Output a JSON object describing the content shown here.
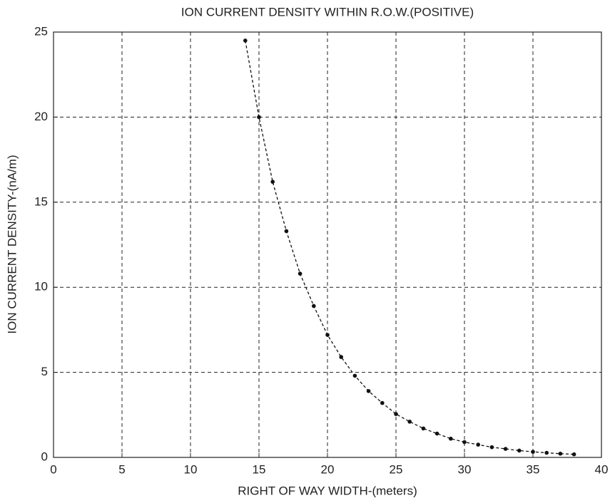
{
  "chart_data": {
    "type": "line",
    "title": "ION CURRENT DENSITY WITHIN R.O.W.(POSITIVE)",
    "x_label": "RIGHT OF WAY WIDTH-(meters)",
    "y_label": "ION CURRENT DENSITY-(nA/m)",
    "x": [
      14,
      15,
      16,
      17,
      18,
      19,
      20,
      21,
      22,
      23,
      24,
      25,
      26,
      27,
      28,
      29,
      30,
      31,
      32,
      33,
      34,
      35,
      36,
      37,
      38
    ],
    "values": [
      24.5,
      20,
      16.2,
      13.3,
      10.8,
      8.9,
      7.2,
      5.9,
      4.8,
      3.9,
      3.2,
      2.55,
      2.1,
      1.7,
      1.4,
      1.1,
      0.9,
      0.75,
      0.6,
      0.5,
      0.4,
      0.33,
      0.27,
      0.22,
      0.18
    ],
    "color": "#111111",
    "xlim": [
      0,
      40
    ],
    "xticks": [
      0,
      5,
      10,
      15,
      20,
      25,
      30,
      35,
      40
    ],
    "ylim": [
      0,
      25
    ],
    "yticks": [
      0,
      5,
      10,
      15,
      20,
      25
    ],
    "grid": true
  }
}
